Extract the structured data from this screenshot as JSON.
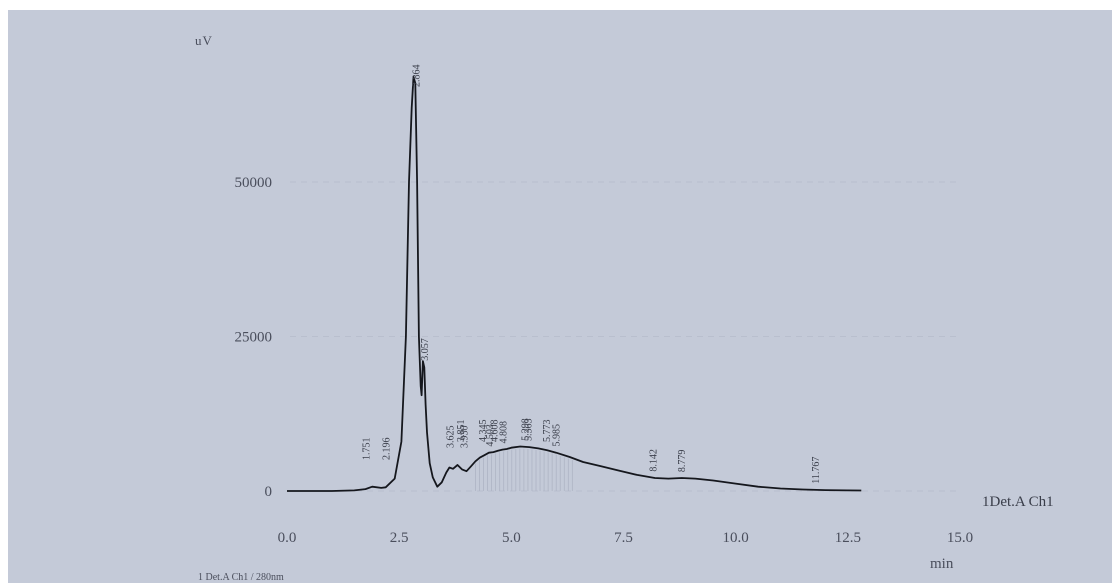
{
  "chart_data": {
    "type": "line",
    "ylabel": "uV",
    "xlabel": "min",
    "trace_label": "1Det.A Ch1",
    "footer": "1  Det.A Ch1 / 280nm",
    "xlim": [
      0.0,
      15.0
    ],
    "ylim": [
      -2000,
      70000
    ],
    "x_ticks": [
      "0.0",
      "2.5",
      "5.0",
      "7.5",
      "10.0",
      "12.5",
      "15.0"
    ],
    "y_ticks": [
      "0",
      "25000",
      "50000"
    ],
    "series": [
      {
        "x": [
          0.0,
          1.0,
          1.5,
          1.75,
          1.9,
          2.1,
          2.2,
          2.4,
          2.55,
          2.65,
          2.72,
          2.78,
          2.82,
          2.86,
          2.9,
          2.94,
          2.98,
          3.0,
          3.03,
          3.06,
          3.09,
          3.12,
          3.18,
          3.25,
          3.35,
          3.45,
          3.55,
          3.62,
          3.7,
          3.8,
          3.9,
          4.0,
          4.1,
          4.2,
          4.3,
          4.4,
          4.5,
          4.6,
          4.7,
          4.8,
          4.9,
          5.0,
          5.2,
          5.4,
          5.6,
          5.8,
          6.0,
          6.3,
          6.6,
          7.0,
          7.4,
          7.8,
          8.2,
          8.5,
          8.8,
          9.1,
          9.5,
          10.0,
          10.5,
          11.0,
          11.5,
          12.0,
          12.5,
          12.8
        ],
        "y": [
          0,
          0,
          100,
          300,
          700,
          500,
          600,
          2000,
          8000,
          25000,
          50000,
          62000,
          67000,
          66000,
          50000,
          25000,
          17000,
          15500,
          21000,
          20000,
          14000,
          9500,
          4500,
          2200,
          700,
          1400,
          3000,
          3800,
          3600,
          4200,
          3500,
          3200,
          4000,
          4800,
          5400,
          5800,
          6200,
          6300,
          6500,
          6700,
          6800,
          7000,
          7200,
          7100,
          6900,
          6600,
          6200,
          5500,
          4700,
          4000,
          3300,
          2600,
          2100,
          2000,
          2100,
          2000,
          1700,
          1200,
          700,
          400,
          250,
          150,
          100,
          80
        ]
      }
    ],
    "peak_labels": [
      {
        "t": 1.751,
        "text": "1.751"
      },
      {
        "t": 2.196,
        "text": "2.196"
      },
      {
        "t": 2.864,
        "text": "2.864"
      },
      {
        "t": 3.057,
        "text": "3.057"
      },
      {
        "t": 3.625,
        "text": "3.625"
      },
      {
        "t": 3.851,
        "text": "3.851"
      },
      {
        "t": 3.93,
        "text": "3.930"
      },
      {
        "t": 4.345,
        "text": "4.345"
      },
      {
        "t": 4.503,
        "text": "4.503"
      },
      {
        "t": 4.608,
        "text": "4.608"
      },
      {
        "t": 4.808,
        "text": "4.808"
      },
      {
        "t": 5.298,
        "text": "5.298"
      },
      {
        "t": 5.363,
        "text": "5.363"
      },
      {
        "t": 5.773,
        "text": "5.773"
      },
      {
        "t": 5.985,
        "text": "5.985"
      },
      {
        "t": 8.142,
        "text": "8.142"
      },
      {
        "t": 8.779,
        "text": "8.779"
      },
      {
        "t": 11.767,
        "text": "11.767"
      }
    ]
  }
}
